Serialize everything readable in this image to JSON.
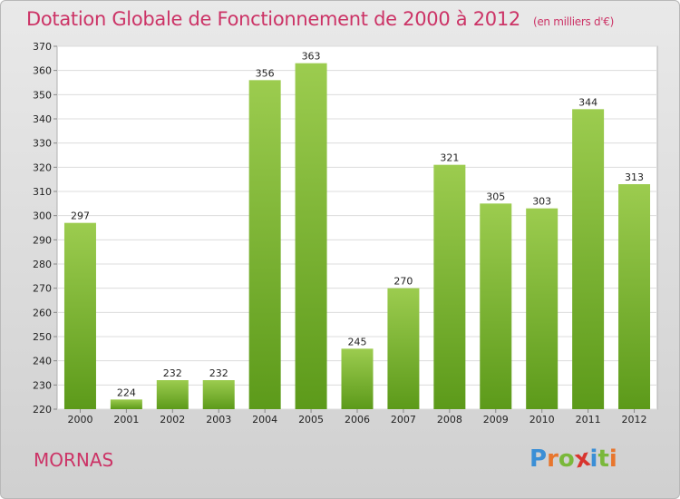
{
  "header": {
    "title": "Dotation Globale de Fonctionnement de 2000 à 2012",
    "unit_note": "(en milliers d'€)"
  },
  "chart_data": {
    "type": "bar",
    "categories": [
      "2000",
      "2001",
      "2002",
      "2003",
      "2004",
      "2005",
      "2006",
      "2007",
      "2008",
      "2009",
      "2010",
      "2011",
      "2012"
    ],
    "values": [
      297,
      224,
      232,
      232,
      356,
      363,
      245,
      270,
      321,
      305,
      303,
      344,
      313
    ],
    "ylim": [
      220,
      370
    ],
    "yticks": [
      220,
      230,
      240,
      250,
      260,
      270,
      280,
      290,
      300,
      310,
      320,
      330,
      340,
      350,
      360,
      370
    ],
    "grid": true,
    "colors": {
      "bar_top": "#9ccc4f",
      "bar_bottom": "#5c9a1a",
      "title": "#cc3366"
    }
  },
  "footer": {
    "commune": "MORNAS",
    "logo_letters": [
      "P",
      "r",
      "o",
      "x",
      "i",
      "t",
      "i"
    ],
    "logo_colors": [
      "#3b8fd6",
      "#e8762d",
      "#7ab83a",
      "#d8342e",
      "#3b8fd6",
      "#7ab83a",
      "#e8762d"
    ]
  }
}
